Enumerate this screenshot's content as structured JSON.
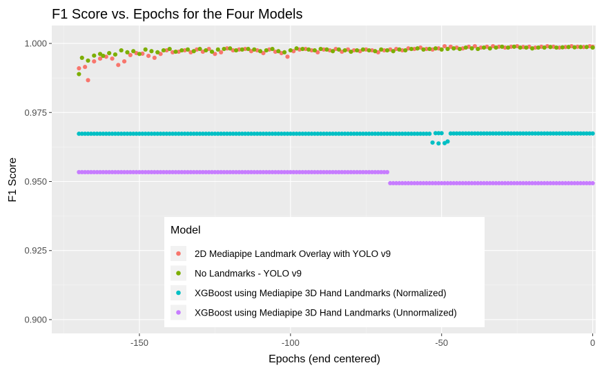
{
  "chart_data": {
    "type": "scatter",
    "title": "F1 Score vs. Epochs for the Four Models",
    "xlabel": "Epochs (end centered)",
    "ylabel": "F1 Score",
    "xlim": [
      -179,
      1
    ],
    "ylim": [
      0.895,
      1.0065
    ],
    "xticks": [
      -150,
      -100,
      -50,
      0
    ],
    "yticks": [
      0.9,
      0.925,
      0.95,
      0.975,
      1.0
    ],
    "xtick_labels": [
      "-150",
      "-100",
      "-50",
      "0"
    ],
    "ytick_labels": [
      "0.900",
      "0.925",
      "0.950",
      "0.975",
      "1.000"
    ],
    "grid": true,
    "legend": {
      "title": "Model",
      "placement": "inside-bottom-center"
    },
    "series": [
      {
        "name": "2D Mediapipe Landmark Overlay with YOLO v9",
        "color": "#F8766D",
        "points": [
          [
            -170,
            0.991
          ],
          [
            -168,
            0.9915
          ],
          [
            -167,
            0.9867
          ],
          [
            -165,
            0.9935
          ],
          [
            -163,
            0.9945
          ],
          [
            -161,
            0.9952
          ],
          [
            -159,
            0.9945
          ],
          [
            -157,
            0.9922
          ],
          [
            -155,
            0.9935
          ],
          [
            -153,
            0.9958
          ],
          [
            -151,
            0.9965
          ],
          [
            -149,
            0.9963
          ],
          [
            -147,
            0.9955
          ],
          [
            -145,
            0.9948
          ],
          [
            -143,
            0.9962
          ],
          [
            -141,
            0.9975
          ],
          [
            -139,
            0.9968
          ],
          [
            -137,
            0.997
          ],
          [
            -135,
            0.9975
          ],
          [
            -133,
            0.9968
          ],
          [
            -131,
            0.9978
          ],
          [
            -129,
            0.997
          ],
          [
            -127,
            0.998
          ],
          [
            -125,
            0.9962
          ],
          [
            -123,
            0.9968
          ],
          [
            -121,
            0.9982
          ],
          [
            -119,
            0.9975
          ],
          [
            -117,
            0.9978
          ],
          [
            -115,
            0.998
          ],
          [
            -113,
            0.9972
          ],
          [
            -111,
            0.9975
          ],
          [
            -109,
            0.9965
          ],
          [
            -107,
            0.9978
          ],
          [
            -105,
            0.997
          ],
          [
            -103,
            0.9965
          ],
          [
            -101,
            0.9952
          ],
          [
            -99,
            0.9972
          ],
          [
            -97,
            0.9978
          ],
          [
            -95,
            0.998
          ],
          [
            -93,
            0.9975
          ],
          [
            -91,
            0.9968
          ],
          [
            -89,
            0.9978
          ],
          [
            -87,
            0.9975
          ],
          [
            -85,
            0.998
          ],
          [
            -83,
            0.997
          ],
          [
            -81,
            0.9978
          ],
          [
            -79,
            0.9975
          ],
          [
            -77,
            0.9972
          ],
          [
            -75,
            0.9978
          ],
          [
            -73,
            0.9975
          ],
          [
            -71,
            0.9968
          ],
          [
            -69,
            0.9975
          ],
          [
            -67,
            0.9978
          ],
          [
            -65,
            0.998
          ],
          [
            -63,
            0.9975
          ],
          [
            -61,
            0.9982
          ],
          [
            -59,
            0.998
          ],
          [
            -57,
            0.9985
          ],
          [
            -55,
            0.998
          ],
          [
            -53,
            0.9978
          ],
          [
            -51,
            0.9982
          ],
          [
            -49,
            0.999
          ],
          [
            -47,
            0.9988
          ],
          [
            -45,
            0.9985
          ],
          [
            -43,
            0.9982
          ],
          [
            -41,
            0.9988
          ],
          [
            -39,
            0.999
          ],
          [
            -37,
            0.9985
          ],
          [
            -35,
            0.9988
          ],
          [
            -33,
            0.999
          ],
          [
            -31,
            0.9988
          ],
          [
            -29,
            0.9985
          ],
          [
            -27,
            0.9988
          ],
          [
            -25,
            0.999
          ],
          [
            -23,
            0.9987
          ],
          [
            -21,
            0.9988
          ],
          [
            -19,
            0.9985
          ],
          [
            -17,
            0.9988
          ],
          [
            -15,
            0.999
          ],
          [
            -13,
            0.9988
          ],
          [
            -11,
            0.9985
          ],
          [
            -9,
            0.9987
          ],
          [
            -7,
            0.999
          ],
          [
            -5,
            0.9988
          ],
          [
            -3,
            0.9987
          ],
          [
            -1,
            0.999
          ],
          [
            0,
            0.9988
          ]
        ]
      },
      {
        "name": "No Landmarks - YOLO v9",
        "color": "#7CAE00",
        "points": [
          [
            -170,
            0.9889
          ],
          [
            -169,
            0.9948
          ],
          [
            -167,
            0.9938
          ],
          [
            -165,
            0.9956
          ],
          [
            -163,
            0.9962
          ],
          [
            -162,
            0.9955
          ],
          [
            -160,
            0.9965
          ],
          [
            -158,
            0.996
          ],
          [
            -156,
            0.9975
          ],
          [
            -154,
            0.9968
          ],
          [
            -152,
            0.9972
          ],
          [
            -150,
            0.9962
          ],
          [
            -148,
            0.9978
          ],
          [
            -146,
            0.9972
          ],
          [
            -144,
            0.9968
          ],
          [
            -142,
            0.9975
          ],
          [
            -140,
            0.998
          ],
          [
            -138,
            0.997
          ],
          [
            -136,
            0.9975
          ],
          [
            -134,
            0.9978
          ],
          [
            -132,
            0.9972
          ],
          [
            -130,
            0.998
          ],
          [
            -128,
            0.9975
          ],
          [
            -126,
            0.997
          ],
          [
            -124,
            0.9978
          ],
          [
            -122,
            0.998
          ],
          [
            -120,
            0.9982
          ],
          [
            -118,
            0.9975
          ],
          [
            -116,
            0.9978
          ],
          [
            -114,
            0.998
          ],
          [
            -112,
            0.9978
          ],
          [
            -110,
            0.9972
          ],
          [
            -108,
            0.9975
          ],
          [
            -106,
            0.998
          ],
          [
            -104,
            0.9972
          ],
          [
            -102,
            0.9968
          ],
          [
            -100,
            0.9975
          ],
          [
            -98,
            0.9982
          ],
          [
            -96,
            0.998
          ],
          [
            -94,
            0.9978
          ],
          [
            -92,
            0.9975
          ],
          [
            -90,
            0.998
          ],
          [
            -88,
            0.9978
          ],
          [
            -86,
            0.9972
          ],
          [
            -84,
            0.9978
          ],
          [
            -82,
            0.9975
          ],
          [
            -80,
            0.997
          ],
          [
            -78,
            0.9975
          ],
          [
            -76,
            0.9978
          ],
          [
            -74,
            0.9975
          ],
          [
            -72,
            0.9972
          ],
          [
            -70,
            0.9978
          ],
          [
            -68,
            0.9975
          ],
          [
            -66,
            0.9972
          ],
          [
            -64,
            0.9978
          ],
          [
            -62,
            0.9975
          ],
          [
            -60,
            0.998
          ],
          [
            -58,
            0.9982
          ],
          [
            -56,
            0.9978
          ],
          [
            -54,
            0.998
          ],
          [
            -52,
            0.9982
          ],
          [
            -50,
            0.9978
          ],
          [
            -48,
            0.998
          ],
          [
            -46,
            0.9982
          ],
          [
            -44,
            0.998
          ],
          [
            -42,
            0.9985
          ],
          [
            -40,
            0.9982
          ],
          [
            -38,
            0.998
          ],
          [
            -36,
            0.9985
          ],
          [
            -34,
            0.9982
          ],
          [
            -32,
            0.9985
          ],
          [
            -30,
            0.9988
          ],
          [
            -28,
            0.9985
          ],
          [
            -26,
            0.9988
          ],
          [
            -24,
            0.9985
          ],
          [
            -22,
            0.9985
          ],
          [
            -20,
            0.9982
          ],
          [
            -18,
            0.9985
          ],
          [
            -16,
            0.9985
          ],
          [
            -14,
            0.9987
          ],
          [
            -12,
            0.9985
          ],
          [
            -10,
            0.9986
          ],
          [
            -8,
            0.9987
          ],
          [
            -6,
            0.9986
          ],
          [
            -4,
            0.9987
          ],
          [
            -2,
            0.9987
          ],
          [
            0,
            0.9985
          ]
        ]
      },
      {
        "name": "XGBoost using Mediapipe 3D Hand Landmarks (Normalized)",
        "segments": [
          {
            "x_from": -170,
            "x_to": -54,
            "y": 0.9673
          },
          {
            "x_from": -52,
            "x_to": -50,
            "y": 0.9675
          },
          {
            "x_from": -47,
            "x_to": 0,
            "y": 0.9674
          }
        ],
        "extra_points": [
          [
            -53,
            0.9641
          ],
          [
            -51,
            0.9638
          ],
          [
            -49,
            0.9639
          ],
          [
            -48,
            0.9645
          ]
        ],
        "color": "#00BFC4"
      },
      {
        "name": "XGBoost using Mediapipe 3D Hand Landmarks (Unnormalized)",
        "segments": [
          {
            "x_from": -170,
            "x_to": -68,
            "y": 0.9534
          },
          {
            "x_from": -67,
            "x_to": 0,
            "y": 0.9494
          }
        ],
        "color": "#C77CFF"
      }
    ]
  }
}
